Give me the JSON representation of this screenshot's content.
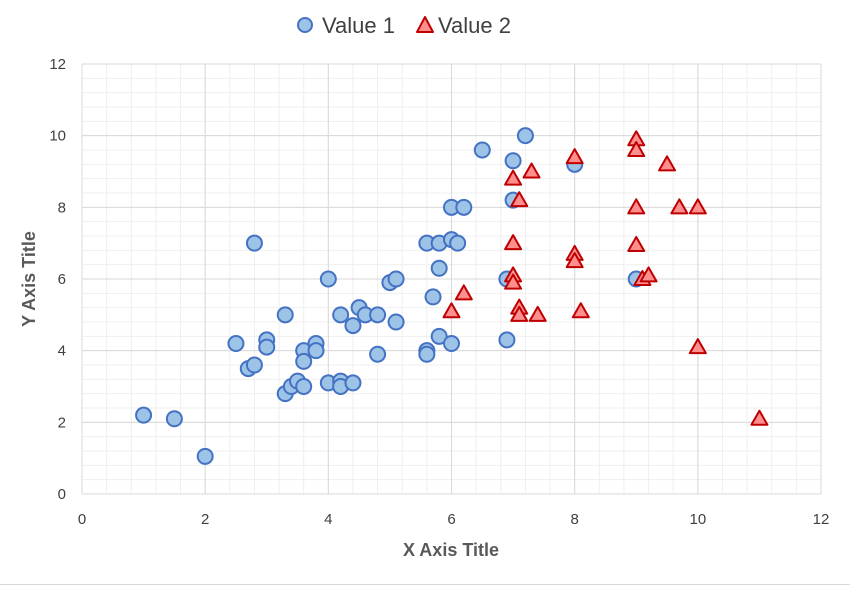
{
  "chart_data": {
    "type": "scatter",
    "title": "",
    "xlabel": "X Axis Title",
    "ylabel": "Y Axis Title",
    "xlim": [
      0,
      12
    ],
    "ylim": [
      0,
      12
    ],
    "xticks": [
      0,
      2,
      4,
      6,
      8,
      10,
      12
    ],
    "yticks": [
      0,
      2,
      4,
      6,
      8,
      10,
      12
    ],
    "grid": {
      "major": true,
      "minor": true
    },
    "legend_position": "top-center",
    "series": [
      {
        "name": "Value 1",
        "marker": "circle",
        "fill": "#9dc3e6",
        "stroke": "#4472c4",
        "points": [
          [
            1.0,
            2.2
          ],
          [
            1.5,
            2.1
          ],
          [
            2.0,
            1.05
          ],
          [
            2.5,
            4.2
          ],
          [
            2.7,
            3.5
          ],
          [
            2.8,
            3.6
          ],
          [
            2.8,
            7.0
          ],
          [
            3.0,
            4.3
          ],
          [
            3.0,
            4.1
          ],
          [
            3.3,
            5.0
          ],
          [
            3.3,
            2.8
          ],
          [
            3.4,
            3.0
          ],
          [
            3.5,
            3.15
          ],
          [
            3.6,
            4.0
          ],
          [
            3.6,
            3.7
          ],
          [
            3.6,
            3.0
          ],
          [
            3.8,
            4.2
          ],
          [
            3.8,
            4.0
          ],
          [
            4.0,
            6.0
          ],
          [
            4.0,
            3.1
          ],
          [
            4.2,
            5.0
          ],
          [
            4.2,
            3.15
          ],
          [
            4.2,
            3.0
          ],
          [
            4.4,
            4.7
          ],
          [
            4.4,
            3.1
          ],
          [
            4.5,
            5.2
          ],
          [
            4.6,
            5.0
          ],
          [
            4.8,
            5.0
          ],
          [
            4.8,
            3.9
          ],
          [
            5.0,
            5.9
          ],
          [
            5.1,
            6.0
          ],
          [
            5.1,
            4.8
          ],
          [
            5.6,
            7.0
          ],
          [
            5.6,
            4.0
          ],
          [
            5.6,
            3.9
          ],
          [
            5.7,
            5.5
          ],
          [
            5.8,
            7.0
          ],
          [
            5.8,
            6.3
          ],
          [
            5.8,
            4.4
          ],
          [
            6.0,
            8.0
          ],
          [
            6.0,
            7.1
          ],
          [
            6.0,
            4.2
          ],
          [
            6.1,
            7.0
          ],
          [
            6.2,
            8.0
          ],
          [
            6.5,
            9.6
          ],
          [
            6.9,
            6.0
          ],
          [
            6.9,
            4.3
          ],
          [
            7.0,
            9.3
          ],
          [
            7.0,
            8.2
          ],
          [
            7.2,
            10.0
          ],
          [
            8.0,
            9.2
          ],
          [
            9.0,
            6.0
          ]
        ]
      },
      {
        "name": "Value 2",
        "marker": "triangle",
        "fill": "#ff8f8f",
        "stroke": "#c00000",
        "points": [
          [
            6.0,
            5.1
          ],
          [
            6.2,
            5.6
          ],
          [
            7.0,
            8.8
          ],
          [
            7.0,
            7.0
          ],
          [
            7.0,
            6.1
          ],
          [
            7.0,
            5.9
          ],
          [
            7.1,
            8.2
          ],
          [
            7.1,
            5.2
          ],
          [
            7.1,
            5.0
          ],
          [
            7.3,
            9.0
          ],
          [
            7.4,
            5.0
          ],
          [
            8.0,
            9.4
          ],
          [
            8.0,
            6.7
          ],
          [
            8.0,
            6.5
          ],
          [
            8.1,
            5.1
          ],
          [
            9.0,
            9.9
          ],
          [
            9.0,
            9.6
          ],
          [
            9.0,
            8.0
          ],
          [
            9.0,
            6.95
          ],
          [
            9.1,
            6.0
          ],
          [
            9.2,
            6.1
          ],
          [
            9.5,
            9.2
          ],
          [
            9.7,
            8.0
          ],
          [
            10.0,
            8.0
          ],
          [
            10.0,
            4.1
          ],
          [
            11.0,
            2.1
          ]
        ]
      }
    ]
  }
}
